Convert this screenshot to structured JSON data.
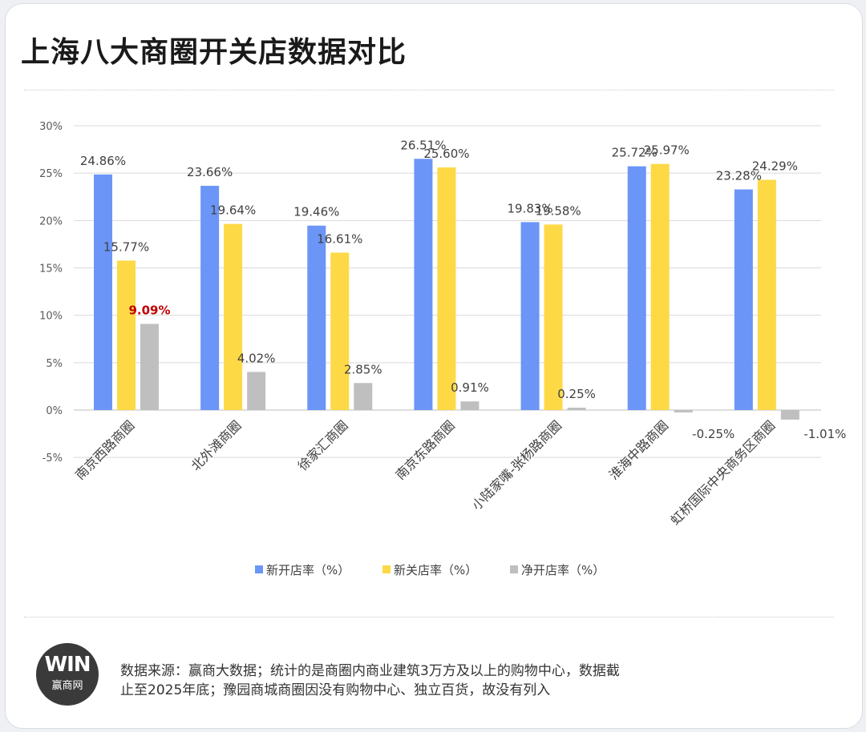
{
  "title": "上海八大商圈开关店数据对比",
  "logo": {
    "mark": "WIN",
    "name": "赢商网"
  },
  "footer": {
    "line1": "数据来源：赢商大数据；统计的是商圈内商业建筑3万方及以上的购物中心，数据截",
    "line2": "止至2025年底；豫园商城商圈因没有购物中心、独立百货，故没有列入"
  },
  "colors": {
    "open": "#6b95f7",
    "close": "#fdd946",
    "net": "#bfbfbf",
    "highlight": "#c00000"
  },
  "chart_data": {
    "type": "bar",
    "categories": [
      "南京西路商圈",
      "北外滩商圈",
      "徐家汇商圈",
      "南京东路商圈",
      "小陆家嘴-张杨路商圈",
      "淮海中路商圈",
      "虹桥国际中央商务区商圈"
    ],
    "series": [
      {
        "name": "新开店率（%）",
        "values": [
          24.86,
          23.66,
          19.46,
          26.51,
          19.83,
          25.72,
          23.28
        ],
        "labels": [
          "24.86%",
          "23.66%",
          "19.46%",
          "26.51%",
          "19.83%",
          "25.72%",
          "23.28%"
        ]
      },
      {
        "name": "新关店率（%）",
        "values": [
          15.77,
          19.64,
          16.61,
          25.6,
          19.58,
          25.97,
          24.29
        ],
        "labels": [
          "15.77%",
          "19.64%",
          "16.61%",
          "25.60%",
          "19.58%",
          "25.97%",
          "24.29%"
        ]
      },
      {
        "name": "净开店率（%）",
        "values": [
          9.09,
          4.02,
          2.85,
          0.91,
          0.25,
          -0.25,
          -1.01
        ],
        "labels": [
          "9.09%",
          "4.02%",
          "2.85%",
          "0.91%",
          "0.25%",
          "-0.25%",
          "-1.01%"
        ]
      }
    ],
    "yticks": [
      "30%",
      "25%",
      "20%",
      "15%",
      "10%",
      "5%",
      "0%",
      "-5%"
    ],
    "ytick_values": [
      30,
      25,
      20,
      15,
      10,
      5,
      0,
      -5
    ],
    "ylim": [
      -5,
      30
    ],
    "grid": true,
    "legend": "bottom",
    "highlight_label": "9.09%"
  }
}
